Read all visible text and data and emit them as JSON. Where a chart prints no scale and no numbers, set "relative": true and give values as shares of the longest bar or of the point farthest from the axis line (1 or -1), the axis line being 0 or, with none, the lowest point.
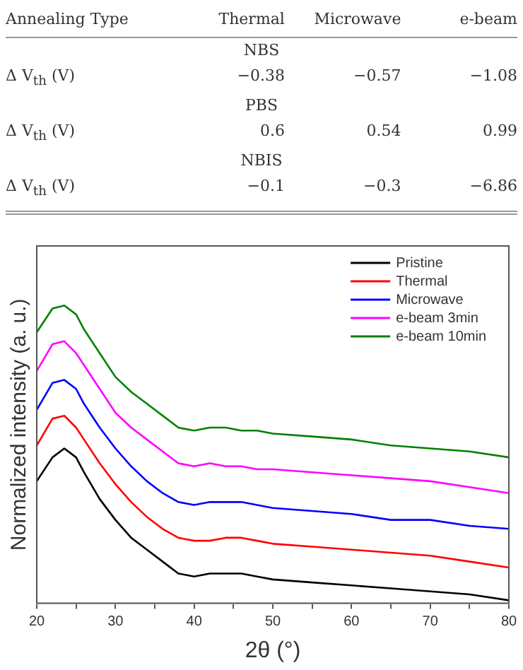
{
  "chart_data": [
    {
      "type": "other",
      "annotations": [
        "Annealing Type",
        "Thermal",
        "Microwave",
        "e-beam",
        "NBS",
        "Δ V$_{th}$ (V)",
        "−0.38",
        "−0.57",
        "−1.08",
        "PBS",
        "Δ V$_{th}$ (V)",
        "0.6",
        "0.54",
        "0.99",
        "NBIS",
        "Δ V$_{th}$ (V)",
        "−0.1",
        "−0.3",
        "−6.86"
      ]
    },
    {
      "type": "line",
      "xlabel": "2θ (°)",
      "ylabel": "Normalized intensity (a. u.)",
      "relative": true,
      "x": [
        20,
        22,
        23.5,
        25,
        26,
        28,
        30,
        32,
        34,
        36,
        38,
        40,
        42,
        44,
        46,
        48,
        50,
        55,
        60,
        65,
        70,
        75,
        80
      ],
      "xlim": [
        20,
        80
      ],
      "xticks": [
        20,
        {
          "value": 25,
          "label": null
        },
        30,
        {
          "value": 35,
          "label": null
        },
        40,
        {
          "value": 45,
          "label": null
        },
        50,
        {
          "value": 55,
          "label": null
        },
        60,
        {
          "value": 65,
          "label": null
        },
        70,
        {
          "value": 75,
          "label": null
        },
        80
      ],
      "legend": "top right",
      "grid": false,
      "marker": "none",
      "line_style": "solid",
      "series": [
        {
          "name": "Pristine",
          "color": "#000000",
          "values": [
            0.41,
            0.49,
            0.52,
            0.49,
            0.44,
            0.35,
            0.28,
            0.22,
            0.18,
            0.14,
            0.1,
            0.09,
            0.1,
            0.1,
            0.1,
            0.09,
            0.08,
            0.07,
            0.06,
            0.05,
            0.04,
            0.03,
            0.01
          ]
        },
        {
          "name": "Thermal",
          "color": "#ff0000",
          "values": [
            0.53,
            0.62,
            0.63,
            0.59,
            0.55,
            0.47,
            0.4,
            0.34,
            0.29,
            0.25,
            0.22,
            0.21,
            0.21,
            0.22,
            0.22,
            0.21,
            0.2,
            0.19,
            0.18,
            0.17,
            0.16,
            0.14,
            0.12
          ]
        },
        {
          "name": "Microwave",
          "color": "#0000ff",
          "values": [
            0.65,
            0.74,
            0.75,
            0.72,
            0.67,
            0.59,
            0.52,
            0.46,
            0.41,
            0.37,
            0.34,
            0.33,
            0.34,
            0.34,
            0.34,
            0.33,
            0.32,
            0.31,
            0.3,
            0.28,
            0.28,
            0.26,
            0.25
          ]
        },
        {
          "name": "e-beam 3min",
          "color": "#ff00ff",
          "values": [
            0.78,
            0.87,
            0.88,
            0.84,
            0.8,
            0.72,
            0.64,
            0.59,
            0.55,
            0.51,
            0.47,
            0.46,
            0.47,
            0.46,
            0.46,
            0.45,
            0.45,
            0.44,
            0.43,
            0.42,
            0.41,
            0.39,
            0.37
          ]
        },
        {
          "name": "e-beam 10min",
          "color": "#008000",
          "values": [
            0.91,
            0.99,
            1,
            0.97,
            0.92,
            0.84,
            0.76,
            0.71,
            0.67,
            0.63,
            0.59,
            0.58,
            0.59,
            0.59,
            0.58,
            0.58,
            0.57,
            0.56,
            0.55,
            0.53,
            0.52,
            0.51,
            0.49
          ]
        }
      ]
    }
  ]
}
